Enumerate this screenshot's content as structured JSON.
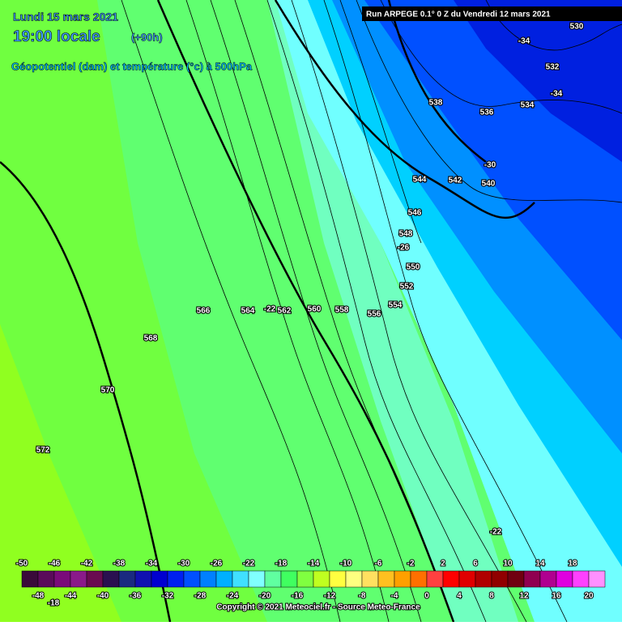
{
  "header": {
    "date": "Lundi 15 mars 2021",
    "time": "19:00 locale",
    "lead": "(+90h)",
    "subtitle": "Géopotentiel (dam) et température (°c) à 500hPa",
    "run": "Run ARPEGE 0.1° 0 Z du Vendredi 12 mars 2021"
  },
  "contour_labels": [
    530,
    -34,
    532,
    -34,
    538,
    536,
    534,
    -30,
    544,
    542,
    540,
    546,
    548,
    -26,
    550,
    552,
    554,
    556,
    558,
    560,
    562,
    -22,
    564,
    566,
    568,
    570,
    572,
    -22,
    -18
  ],
  "colorbar": {
    "top_labels": [
      -50,
      -46,
      -42,
      -38,
      -34,
      -30,
      -26,
      -22,
      -18,
      -14,
      -10,
      -6,
      -2,
      2,
      6,
      10,
      14,
      18
    ],
    "bottom_labels": [
      -48,
      -44,
      -40,
      -36,
      -32,
      -28,
      -24,
      -20,
      -16,
      -12,
      -8,
      -4,
      0,
      4,
      8,
      12,
      16,
      20
    ],
    "colors": [
      "#3a0a3a",
      "#5a0a5a",
      "#7a0a7a",
      "#8a1a8a",
      "#6a0a50",
      "#2a1050",
      "#1a2a80",
      "#1010b0",
      "#0000d0",
      "#0020f0",
      "#0050ff",
      "#0080ff",
      "#00b0ff",
      "#40e0ff",
      "#80ffff",
      "#60ffa0",
      "#40ff60",
      "#80ff40",
      "#c0ff20",
      "#ffff40",
      "#ffff80",
      "#ffe060",
      "#ffc020",
      "#ffa000",
      "#ff7000",
      "#ff4040",
      "#ff0000",
      "#e00000",
      "#b00000",
      "#900000",
      "#700010",
      "#900050",
      "#b00090",
      "#e000e0",
      "#ff40ff",
      "#ff90ff"
    ]
  },
  "copyright": "Copyright © 2021 Meteociel.fr - Source Meteo-France"
}
